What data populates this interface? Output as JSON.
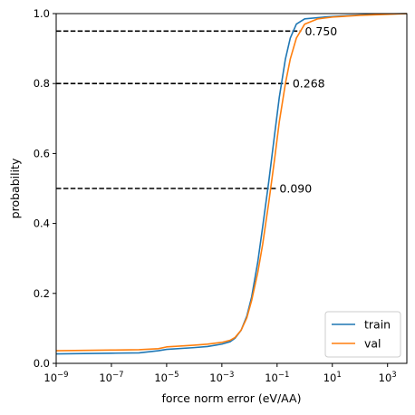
{
  "chart_data": {
    "type": "line",
    "title": "",
    "xlabel": "force norm error (eV/AA)",
    "ylabel": "probability",
    "xscale": "log",
    "xlim": [
      1e-09,
      5000
    ],
    "ylim": [
      0,
      1
    ],
    "grid": false,
    "legend_position": "bottom-right",
    "x_ticks": [
      {
        "value": 1e-09,
        "base": "10",
        "exp": "−9"
      },
      {
        "value": 1e-07,
        "base": "10",
        "exp": "−7"
      },
      {
        "value": 1e-05,
        "base": "10",
        "exp": "−5"
      },
      {
        "value": 0.001,
        "base": "10",
        "exp": "−3"
      },
      {
        "value": 0.1,
        "base": "10",
        "exp": "−1"
      },
      {
        "value": 10,
        "base": "10",
        "exp": "1"
      },
      {
        "value": 1000,
        "base": "10",
        "exp": "3"
      }
    ],
    "y_ticks": [
      {
        "value": 0.0,
        "label": "0.0"
      },
      {
        "value": 0.2,
        "label": "0.2"
      },
      {
        "value": 0.4,
        "label": "0.4"
      },
      {
        "value": 0.6,
        "label": "0.6"
      },
      {
        "value": 0.8,
        "label": "0.8"
      },
      {
        "value": 1.0,
        "label": "1.0"
      }
    ],
    "series": [
      {
        "name": "train",
        "color": "#1f77b4",
        "points": [
          [
            1e-09,
            0.027
          ],
          [
            1e-08,
            0.028
          ],
          [
            1e-07,
            0.029
          ],
          [
            1e-06,
            0.03
          ],
          [
            5e-06,
            0.036
          ],
          [
            1e-05,
            0.04
          ],
          [
            0.0001,
            0.045
          ],
          [
            0.0003,
            0.048
          ],
          [
            0.001,
            0.055
          ],
          [
            0.002,
            0.062
          ],
          [
            0.003,
            0.072
          ],
          [
            0.005,
            0.095
          ],
          [
            0.008,
            0.135
          ],
          [
            0.012,
            0.19
          ],
          [
            0.02,
            0.29
          ],
          [
            0.03,
            0.39
          ],
          [
            0.05,
            0.52
          ],
          [
            0.08,
            0.65
          ],
          [
            0.12,
            0.76
          ],
          [
            0.2,
            0.87
          ],
          [
            0.3,
            0.93
          ],
          [
            0.5,
            0.97
          ],
          [
            1,
            0.985
          ],
          [
            5,
            0.99
          ],
          [
            20,
            0.993
          ],
          [
            100,
            0.996
          ],
          [
            1000,
            0.999
          ],
          [
            5000,
            1.0
          ]
        ]
      },
      {
        "name": "val",
        "color": "#ff7f0e",
        "points": [
          [
            1e-09,
            0.036
          ],
          [
            1e-08,
            0.037
          ],
          [
            1e-07,
            0.038
          ],
          [
            1e-06,
            0.039
          ],
          [
            5e-06,
            0.042
          ],
          [
            1e-05,
            0.047
          ],
          [
            0.0001,
            0.052
          ],
          [
            0.0003,
            0.055
          ],
          [
            0.001,
            0.06
          ],
          [
            0.002,
            0.066
          ],
          [
            0.003,
            0.074
          ],
          [
            0.005,
            0.095
          ],
          [
            0.008,
            0.13
          ],
          [
            0.012,
            0.18
          ],
          [
            0.02,
            0.26
          ],
          [
            0.03,
            0.34
          ],
          [
            0.05,
            0.46
          ],
          [
            0.08,
            0.58
          ],
          [
            0.12,
            0.69
          ],
          [
            0.2,
            0.8
          ],
          [
            0.3,
            0.87
          ],
          [
            0.5,
            0.93
          ],
          [
            1,
            0.97
          ],
          [
            3,
            0.985
          ],
          [
            10,
            0.99
          ],
          [
            100,
            0.995
          ],
          [
            1000,
            0.998
          ],
          [
            5000,
            1.0
          ]
        ]
      }
    ],
    "annotations": [
      {
        "y": 0.95,
        "x_end": 0.75,
        "label": "0.750"
      },
      {
        "y": 0.8,
        "x_end": 0.268,
        "label": "0.268"
      },
      {
        "y": 0.5,
        "x_end": 0.09,
        "label": "0.090"
      }
    ]
  }
}
